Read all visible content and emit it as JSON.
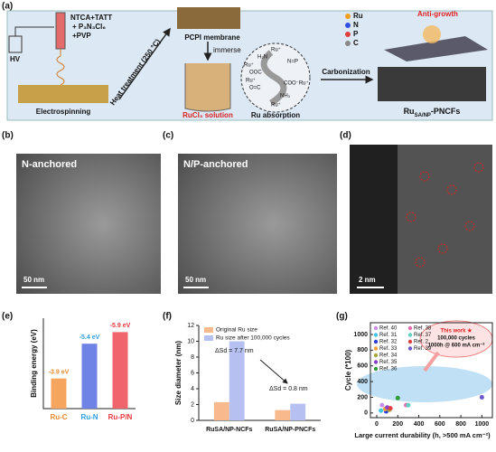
{
  "schematic": {
    "panel_label": "(a)",
    "precursors": [
      "NTCA+TATT",
      "+ P₃N₃Cl₆",
      "+PVP"
    ],
    "hv": "HV",
    "electrospinning": "Electrospinning",
    "heat": "Heat treatment (250 °C)",
    "membrane": "PCPI membrane",
    "immerse": "immerse",
    "solution": "RuCl₃ solution",
    "absorption": "Ru absorption",
    "circle_labels": [
      "Ru⁺",
      "H₂N",
      "N=P",
      "Ru⁺",
      "OOC",
      "O=C",
      "Ru⁺",
      "COO⁻Ru⁺",
      "NH₃",
      "Ru⁺"
    ],
    "legend": [
      "Ru",
      "N",
      "P",
      "C"
    ],
    "anti_growth": "Anti-growth",
    "carbonization": "Carbonization",
    "product": {
      "base": "Ru",
      "sub": "SA/NP",
      "rest": "-PNCFs"
    }
  },
  "images": [
    {
      "panel_label": "(b)",
      "caption": "N-anchored",
      "scale": "50 nm"
    },
    {
      "panel_label": "(c)",
      "caption": "N/P-anchored",
      "scale": "50 nm"
    },
    {
      "panel_label": "(d)",
      "scale": "2 nm"
    }
  ],
  "chart_data": [
    {
      "type": "bar",
      "panel_label": "(e)",
      "y_label": "Binding energy (eV)",
      "categories": [
        "Ru-C",
        "Ru-N",
        "Ru-P/N"
      ],
      "values": [
        -3.9,
        -5.4,
        -5.9
      ],
      "value_labels": [
        "-3.9 eV",
        "-5.4 eV",
        "-5.9 eV"
      ],
      "colors": [
        "#f5a55e",
        "#6f82e6",
        "#f0656b"
      ],
      "label_colors": [
        "#e8892c",
        "#2f9fe0",
        "#e8353c"
      ],
      "ylim": [
        -2.6,
        -6.5
      ]
    },
    {
      "type": "bar",
      "panel_label": "(f)",
      "y_label": "Size diameter (nm)",
      "categories": [
        "RuSA/NP-NCFs",
        "RuSA/NP-PNCFs"
      ],
      "series": [
        {
          "name": "Original Ru size",
          "color": "#f8b98c",
          "values": [
            2.3,
            1.3
          ]
        },
        {
          "name": "Ru size after 100,000 cycles",
          "color": "#b6c1f2",
          "values": [
            10.0,
            2.1
          ]
        }
      ],
      "annotations": [
        "ΔSd = 7.7 nm",
        "ΔSd = 0.8 nm"
      ],
      "ylim": [
        0,
        12
      ],
      "yticks": [
        0,
        2,
        4,
        6,
        8,
        10,
        12
      ]
    },
    {
      "type": "scatter",
      "panel_label": "(g)",
      "x_label": "Large current durability (h, >500 mA cm⁻²)",
      "y_label": "Cycle (*100)",
      "xlim": [
        -60,
        1100
      ],
      "ylim": [
        -60,
        1150
      ],
      "xticks": [
        0,
        200,
        400,
        600,
        800,
        1000
      ],
      "yticks": [
        0,
        200,
        400,
        600,
        800,
        1000
      ],
      "series": [
        {
          "name": "Ref. 40",
          "color": "#c98de8",
          "x": [
            50
          ],
          "values": [
            100
          ]
        },
        {
          "name": "Ref. 31",
          "color": "#3fc6e8",
          "x": [
            40
          ],
          "values": [
            30
          ]
        },
        {
          "name": "Ref. 32",
          "color": "#2a3fd6",
          "x": [
            90
          ],
          "values": [
            20
          ]
        },
        {
          "name": "Ref. 33",
          "color": "#f2a23c",
          "x": [
            80
          ],
          "values": [
            50
          ]
        },
        {
          "name": "Ref. 34",
          "color": "#a8a53a",
          "x": [
            120
          ],
          "values": [
            40
          ]
        },
        {
          "name": "Ref. 35",
          "color": "#8a3fc8",
          "x": [
            100
          ],
          "values": [
            70
          ]
        },
        {
          "name": "Ref. 36",
          "color": "#2f9e3a",
          "x": [
            200
          ],
          "values": [
            190
          ]
        },
        {
          "name": "Ref. 38",
          "color": "#e86bb0",
          "x": [
            280
          ],
          "values": [
            100
          ]
        },
        {
          "name": "Ref. 37",
          "color": "#5fd0c0",
          "x": [
            300
          ],
          "values": [
            100
          ]
        },
        {
          "name": "Ref. 2",
          "color": "#e04040",
          "x": [
            130
          ],
          "values": [
            60
          ]
        },
        {
          "name": "Ref. 39",
          "color": "#6a5acd",
          "x": [
            1000
          ],
          "values": [
            200
          ]
        }
      ],
      "highlight": [
        "This work ★",
        "100,000 cycles",
        "1000h @ 600 mA cm⁻²"
      ]
    }
  ]
}
